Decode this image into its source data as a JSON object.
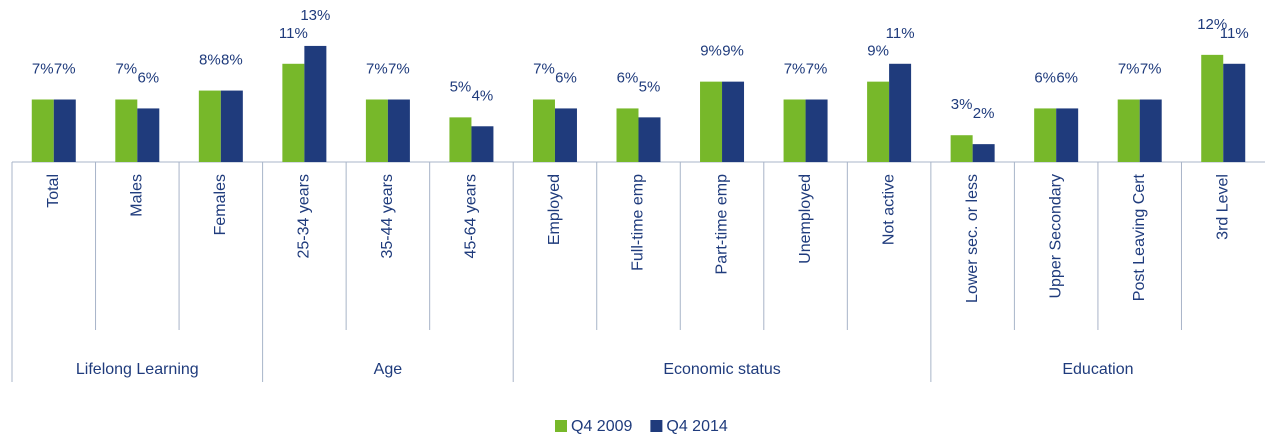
{
  "chart_data": {
    "type": "bar",
    "groups": [
      {
        "name": "Lifelong Learning",
        "categories": [
          "Total",
          "Males",
          "Females"
        ]
      },
      {
        "name": "Age",
        "categories": [
          "25-34 years",
          "35-44 years",
          "45-64 years"
        ]
      },
      {
        "name": "Economic status",
        "categories": [
          "Employed",
          "Full-time emp",
          "Part-time emp",
          "Unemployed",
          "Not active"
        ]
      },
      {
        "name": "Education",
        "categories": [
          "Lower sec. or less",
          "Upper Secondary",
          "Post Leaving Cert",
          "3rd Level"
        ]
      }
    ],
    "series": [
      {
        "name": "Q4 2009",
        "color": "#77b82a",
        "values": [
          7,
          7,
          8,
          11,
          7,
          5,
          7,
          6,
          9,
          7,
          9,
          3,
          6,
          7,
          12
        ],
        "value_labels": [
          "7%",
          "7%",
          "8%",
          "11%",
          "7%",
          "5%",
          "7%",
          "6%",
          "9%",
          "7%",
          "9%",
          "3%",
          "6%",
          "7%",
          "12%"
        ]
      },
      {
        "name": "Q4 2014",
        "color": "#1f3b7c",
        "values": [
          7,
          6,
          8,
          13,
          7,
          4,
          6,
          5,
          9,
          7,
          11,
          2,
          6,
          7,
          11
        ],
        "value_labels": [
          "7%",
          "6%",
          "8%",
          "13%",
          "7%",
          "4%",
          "6%",
          "5%",
          "9%",
          "7%",
          "11%",
          "2%",
          "6%",
          "7%",
          "11%"
        ]
      }
    ],
    "ylim": [
      0,
      14
    ],
    "legend": "bottom"
  }
}
